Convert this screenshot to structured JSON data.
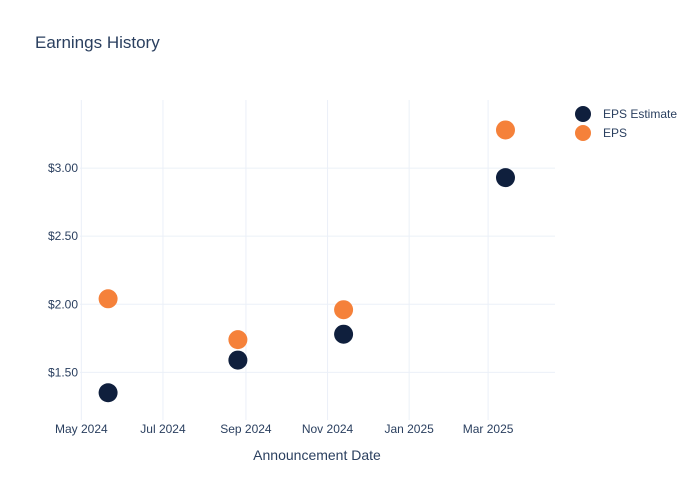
{
  "chart_data": {
    "type": "scatter",
    "title": "Earnings History",
    "xlabel": "Announcement Date",
    "ylabel": "",
    "x_ticks": [
      "2024-05-01",
      "2024-07-01",
      "2024-09-01",
      "2024-11-01",
      "2025-01-01",
      "2025-03-01"
    ],
    "x_tick_labels": [
      "May 2024",
      "Jul 2024",
      "Sep 2024",
      "Nov 2024",
      "Jan 2025",
      "Mar 2025"
    ],
    "xlim": [
      "2024-04-30",
      "2025-04-20"
    ],
    "y_ticks": [
      1.5,
      2.0,
      2.5,
      3.0
    ],
    "y_tick_labels": [
      "$1.50",
      "$2.00",
      "$2.50",
      "$3.00"
    ],
    "ylim": [
      1.15,
      3.5
    ],
    "grid": true,
    "legend_position": "top-right",
    "series": [
      {
        "name": "EPS Estimate",
        "color": "#0f1f3d",
        "points": [
          {
            "x": "2024-05-21",
            "y": 1.35
          },
          {
            "x": "2024-08-26",
            "y": 1.59
          },
          {
            "x": "2024-11-13",
            "y": 1.78
          },
          {
            "x": "2025-03-14",
            "y": 2.93
          }
        ]
      },
      {
        "name": "EPS",
        "color": "#f5813a",
        "points": [
          {
            "x": "2024-05-21",
            "y": 2.04
          },
          {
            "x": "2024-08-26",
            "y": 1.74
          },
          {
            "x": "2024-11-13",
            "y": 1.96
          },
          {
            "x": "2025-03-14",
            "y": 3.28
          }
        ]
      }
    ]
  }
}
